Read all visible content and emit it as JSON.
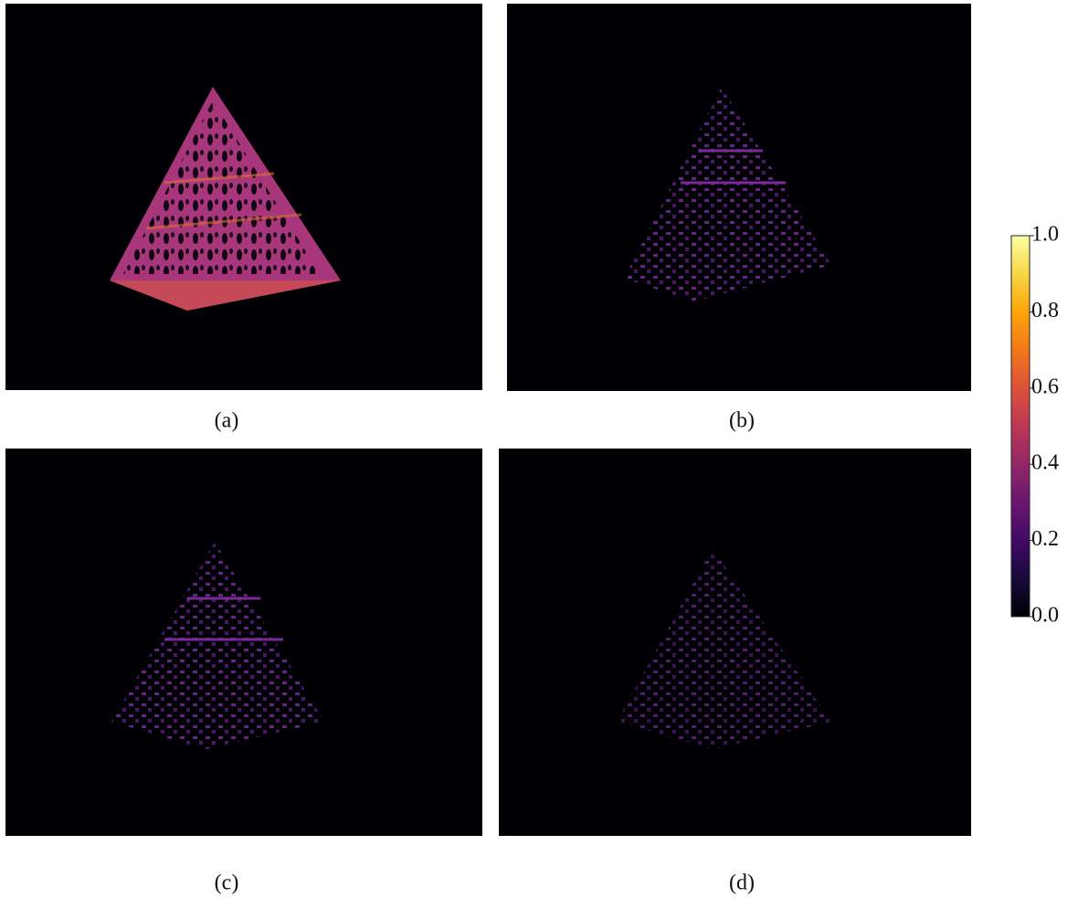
{
  "panels": [
    {
      "label": "(a)"
    },
    {
      "label": "(b)"
    },
    {
      "label": "(c)"
    },
    {
      "label": "(d)"
    }
  ],
  "colorbar": {
    "lim": [
      0,
      1
    ],
    "ticks": [
      {
        "value": 0,
        "label": "0.0"
      },
      {
        "value": 0.2,
        "label": "0.2"
      },
      {
        "value": 0.4,
        "label": "0.4"
      },
      {
        "value": 0.6,
        "label": "0.6"
      },
      {
        "value": 0.8,
        "label": "0.8"
      },
      {
        "value": 1,
        "label": "1.0"
      }
    ]
  }
}
